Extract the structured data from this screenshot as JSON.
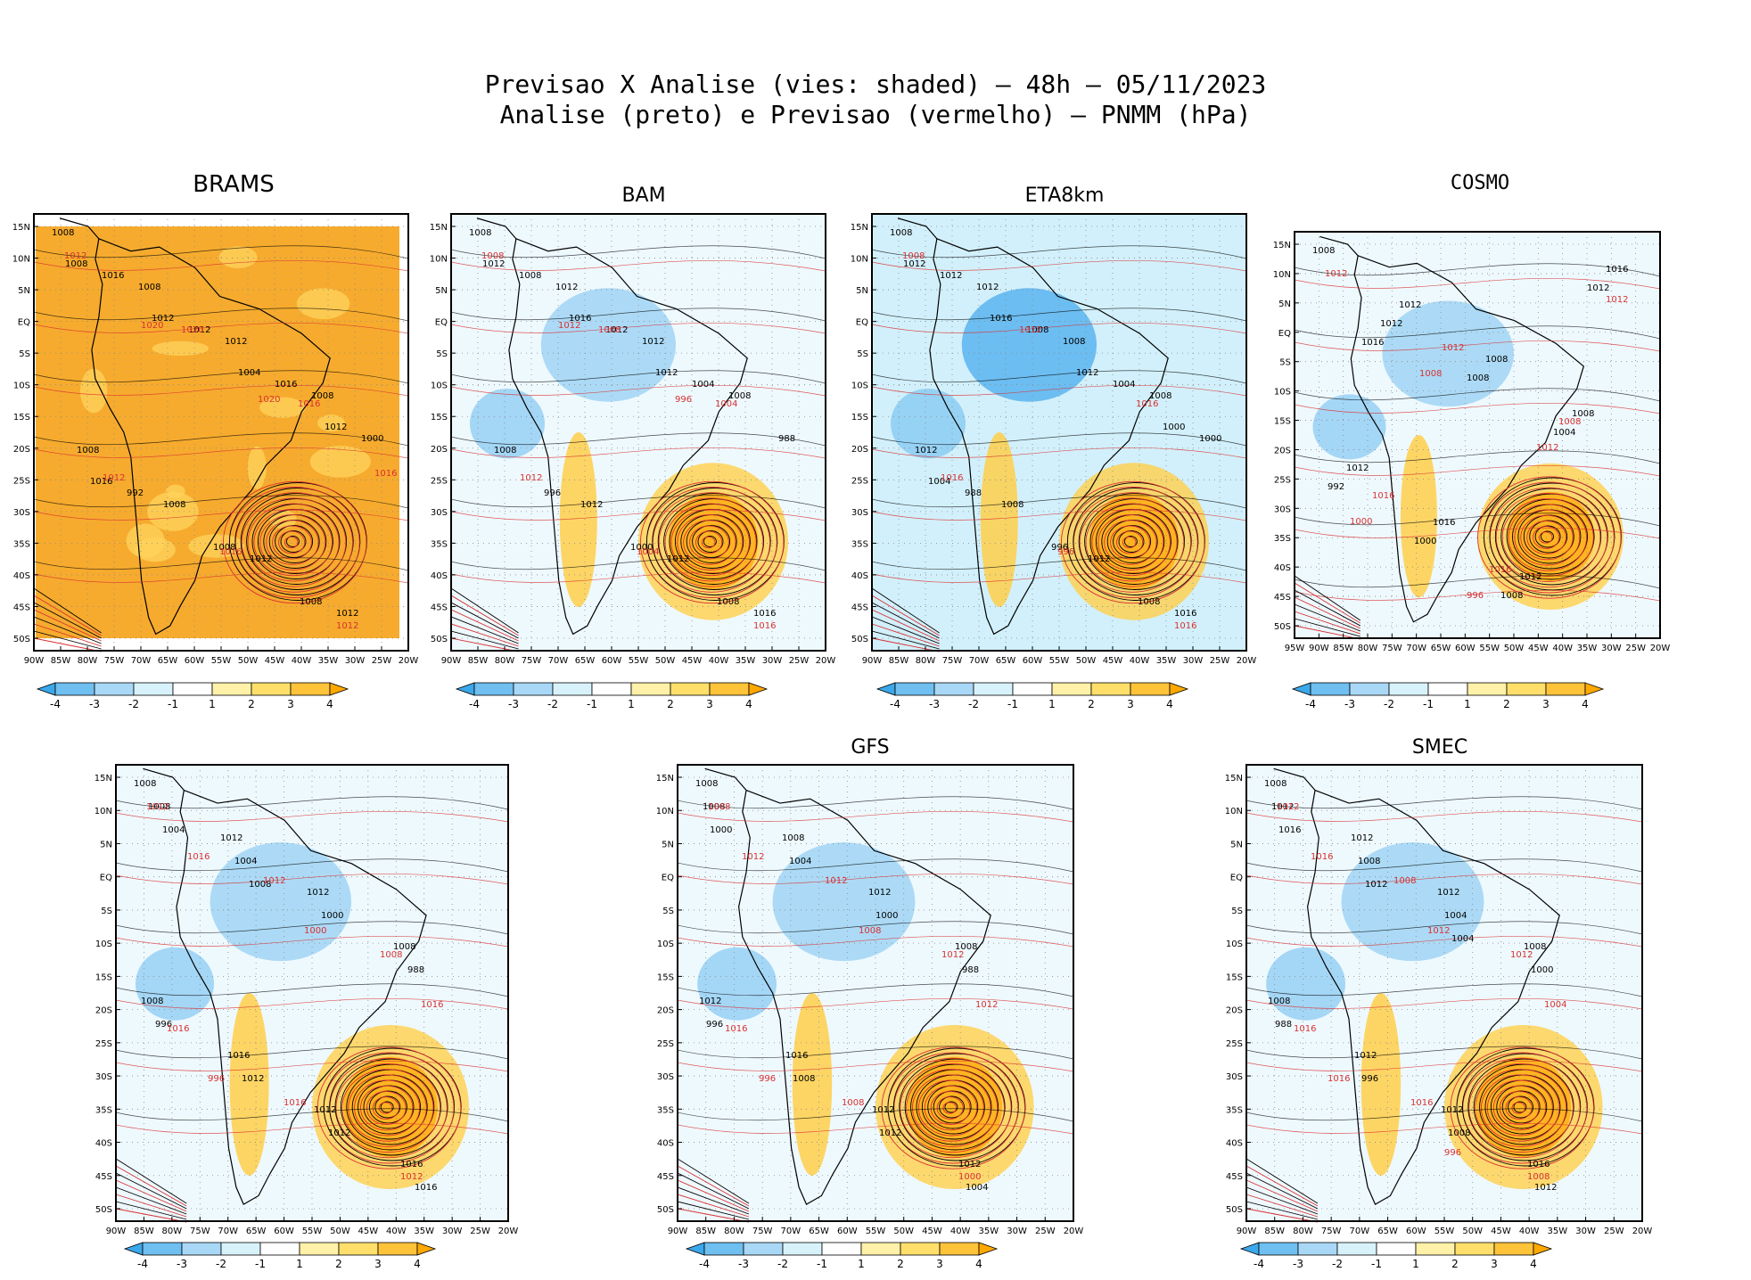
{
  "title_line1": "Previsao X Analise (vies: shaded) — 48h — 05/11/2023",
  "title_line2": "Analise (preto) e Previsao (vermelho) — PNMM (hPa)",
  "lat_labels": [
    "15N",
    "10N",
    "5N",
    "EQ",
    "5S",
    "10S",
    "15S",
    "20S",
    "25S",
    "30S",
    "35S",
    "40S",
    "45S",
    "50S"
  ],
  "lon_labels_90": [
    "90W",
    "85W",
    "80W",
    "75W",
    "70W",
    "65W",
    "60W",
    "55W",
    "50W",
    "45W",
    "40W",
    "35W",
    "30W",
    "25W",
    "20W"
  ],
  "lon_labels_95": [
    "95W",
    "90W",
    "85W",
    "80W",
    "75W",
    "70W",
    "65W",
    "60W",
    "55W",
    "50W",
    "45W",
    "40W",
    "35W",
    "30W",
    "25W",
    "20W"
  ],
  "colorbar": {
    "labels": [
      "-4",
      "-3",
      "-2",
      "-1",
      "1",
      "2",
      "3",
      "4"
    ],
    "colors": [
      "#3aa8ea",
      "#6fbff0",
      "#a9d8f7",
      "#d8f2fb",
      "#ffffff",
      "#fff1a8",
      "#ffdf6a",
      "#ffc33a",
      "#ffa800"
    ]
  },
  "colors": {
    "analysis": "#000000",
    "forecast": "#d93030",
    "bias_positive": "#f5a623",
    "bias_negative": "#5ab4ee"
  },
  "panels": [
    {
      "title": "BRAMS",
      "lon_axis": "lon_labels_90",
      "labels_black": [
        "1008",
        "1008",
        "1012",
        "1008",
        "1008",
        "1008",
        "1012",
        "1012",
        "1016",
        "1012",
        "1016",
        "1000",
        "992",
        "1008",
        "1008",
        "1008",
        "1012",
        "1004",
        "1012",
        "1016"
      ],
      "labels_red": [
        "1012",
        "1020",
        "1016",
        "1012",
        "1016",
        "1012",
        "1020",
        "1020",
        "1016"
      ]
    },
    {
      "title": "BAM",
      "lon_axis": "lon_labels_90",
      "labels_black": [
        "1008",
        "1012",
        "1012",
        "1008",
        "1008",
        "1012",
        "1012",
        "1016",
        "1008",
        "1012",
        "1004",
        "988",
        "996",
        "1000",
        "1008",
        "1012",
        "1016",
        "1012"
      ],
      "labels_red": [
        "1008",
        "1008",
        "1004",
        "1012",
        "1004",
        "1016",
        "1012",
        "996"
      ]
    },
    {
      "title": "ETA8km",
      "lon_axis": "lon_labels_90",
      "labels_black": [
        "1008",
        "1012",
        "1008",
        "1008",
        "1012",
        "1008",
        "1012",
        "1016",
        "1012",
        "1008",
        "1004",
        "1000",
        "988",
        "996",
        "1008",
        "1012",
        "1016",
        "1012",
        "1000",
        "1004"
      ],
      "labels_red": [
        "1008",
        "1012",
        "1016",
        "1016",
        "996",
        "1016"
      ]
    },
    {
      "title": "COSMO",
      "lon_axis": "lon_labels_95",
      "labels_black": [
        "1008",
        "1012",
        "1008",
        "1008",
        "1012",
        "1016",
        "1012",
        "1016",
        "1012",
        "1008",
        "1004",
        "992",
        "1000",
        "1008",
        "1012",
        "1016"
      ],
      "labels_red": [
        "1012",
        "1012",
        "1008",
        "1016",
        "1016",
        "1012",
        "1008",
        "1012",
        "1000",
        "996"
      ]
    },
    {
      "title": "",
      "lon_axis": "lon_labels_90",
      "labels_black": [
        "1008",
        "1012",
        "1012",
        "1008",
        "1008",
        "1016",
        "1012",
        "1016",
        "1008",
        "1004",
        "1000",
        "988",
        "996",
        "1012",
        "1012",
        "1016",
        "1004",
        "1008"
      ],
      "labels_red": [
        "1012",
        "1012",
        "1008",
        "1016",
        "1016",
        "1012",
        "1016",
        "1000",
        "1016",
        "996"
      ]
    },
    {
      "title": "GFS",
      "lon_axis": "lon_labels_90",
      "labels_black": [
        "1008",
        "1008",
        "1012",
        "1008",
        "1012",
        "1016",
        "1012",
        "1012",
        "1008",
        "1004",
        "1000",
        "988",
        "996",
        "1008",
        "1012",
        "1004",
        "1000"
      ],
      "labels_red": [
        "1008",
        "1012",
        "1012",
        "1016",
        "1008",
        "1000",
        "1012",
        "1008",
        "1012",
        "996"
      ]
    },
    {
      "title": "SMEC",
      "lon_axis": "lon_labels_90",
      "labels_black": [
        "1008",
        "1012",
        "1012",
        "1008",
        "1008",
        "1012",
        "1012",
        "1016",
        "1012",
        "1008",
        "1004",
        "1000",
        "988",
        "996",
        "1008",
        "1012",
        "1016",
        "1012",
        "1004"
      ],
      "labels_red": [
        "1012",
        "1008",
        "1012",
        "1016",
        "1016",
        "1008",
        "1016",
        "1012",
        "1004",
        "1016",
        "996"
      ]
    }
  ]
}
